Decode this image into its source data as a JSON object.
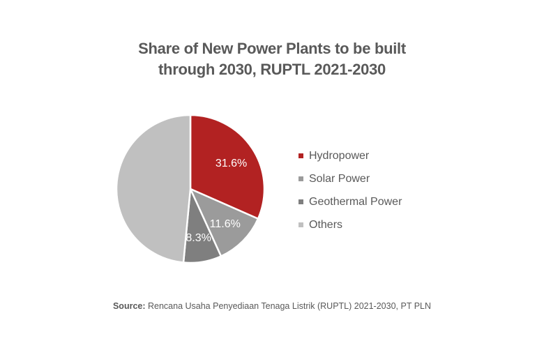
{
  "chart_data": {
    "type": "pie",
    "title_lines": [
      "Share of New Power Plants to be built",
      "through 2030, RUPTL 2021-2030"
    ],
    "categories": [
      "Hydropower",
      "Solar Power",
      "Geothermal Power",
      "Others"
    ],
    "values": [
      31.6,
      11.6,
      8.3,
      48.5
    ],
    "data_labels": [
      "31.6%",
      "11.6%",
      "8.3%",
      ""
    ],
    "colors": [
      "#b22222",
      "#9b9b9b",
      "#7f7f7f",
      "#c0c0c0"
    ],
    "legend_position": "right",
    "start": "top, clockwise"
  },
  "source": {
    "label": "Source:",
    "text": " Rencana Usaha Penyediaan Tenaga Listrik (RUPTL) 2021-2030, PT PLN"
  }
}
